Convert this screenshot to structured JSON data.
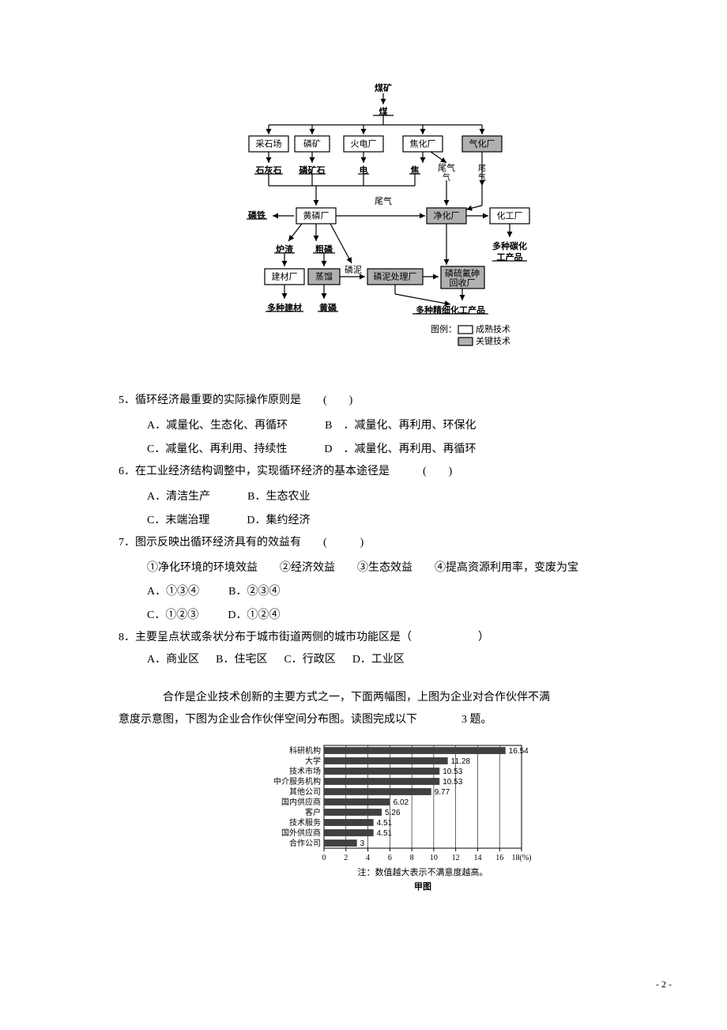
{
  "flowchart": {
    "mine": "煤矿",
    "coal": "煤",
    "quarry": "采石场",
    "pmine": "磷矿",
    "power": "火电厂",
    "coke": "焦化厂",
    "gas": "气化厂",
    "limestone": "石灰石",
    "pore": "磷矿石",
    "elec": "电",
    "jiao": "焦",
    "tailgas1": "尾气",
    "tailgas2": "尾气",
    "tailgas3": "尾气",
    "piron": "磷铁",
    "yellowp": "黄磷厂",
    "purify": "净化厂",
    "chem": "化工厂",
    "slag": "炉渣",
    "crudep": "粗磷",
    "sludge": "磷泥",
    "carbon1": "多种碳化",
    "carbon2": "工产品",
    "buildmat": "建材厂",
    "distill": "蒸馏",
    "sludgeproc": "磷泥处理厂",
    "recovery1": "磷硫氟砷",
    "recovery2": "回收厂",
    "manybuild": "多种建材",
    "yellowp2": "黄磷",
    "finechem": "多种精细化工产品",
    "legend_title": "图例：",
    "legend_mature": "成熟技术",
    "legend_key": "关键技术"
  },
  "q5": {
    "text": "5．循环经济最重要的实际操作原则是　　(　　)",
    "A": "A．减量化、生态化、再循环",
    "B": "B　．减量化、再利用、环保化",
    "C": "C．减量化、再利用、持续性",
    "D": "D　．减量化、再利用、再循环"
  },
  "q6": {
    "text": "6．在工业经济结构调整中，实现循环经济的基本途径是　　　(　　)",
    "A": "A．清洁生产",
    "B": "B．生态农业",
    "C": "C．末端治理",
    "D": "D．集约经济"
  },
  "q7": {
    "text": "7．图示反映出循环经济具有的效益有　　(　　　)",
    "items": "①净化环境的环境效益　　②经济效益　　③生态效益　　④提高资源利用率，变废为宝",
    "A": "A．①③④",
    "B": "B．②③④",
    "C": "C．①②③",
    "D": "D．①②④"
  },
  "q8": {
    "text": "8．主要呈点状或条状分布于城市街道两侧的城市功能区是（　　　　　　）",
    "A": "A．商业区",
    "B": "B．住宅区",
    "C": "C．行政区",
    "D": "D．工业区"
  },
  "passage": {
    "line1": "合作是企业技术创新的主要方式之一，下面两幅图，上图为企业对合作伙伴不满",
    "line2": "意度示意图，下图为企业合作伙伴空间分布图。读图完成以下　　　　3 题。"
  },
  "barchart": {
    "type": "bar-horizontal",
    "categories": [
      "科研机构",
      "大学",
      "技术市场",
      "中介服务机构",
      "其他公司",
      "国内供应商",
      "客户",
      "技术服务",
      "国外供应商",
      "合作公司"
    ],
    "values": [
      16.54,
      11.28,
      10.53,
      10.53,
      9.77,
      6.02,
      5.26,
      4.51,
      4.51,
      3
    ],
    "value_labels": [
      "16.54",
      "11.28",
      "10.53",
      "10.53",
      "9.77",
      "6.02",
      "5.26",
      "4.51",
      "4.51",
      "3"
    ],
    "bar_color": "#404040",
    "background_color": "#ffffff",
    "grid_color": "#000000",
    "xlim": [
      0,
      18
    ],
    "xtick_step": 2,
    "xticks": [
      0,
      2,
      4,
      6,
      8,
      10,
      12,
      14,
      16,
      18
    ],
    "xtick_labels": [
      "0",
      "2",
      "4",
      "6",
      "8",
      "10",
      "12",
      "14",
      "16",
      "18(%)"
    ],
    "note": "注：数值越大表示不满意度越高。",
    "caption": "甲图"
  },
  "page_number": "- 2 -"
}
